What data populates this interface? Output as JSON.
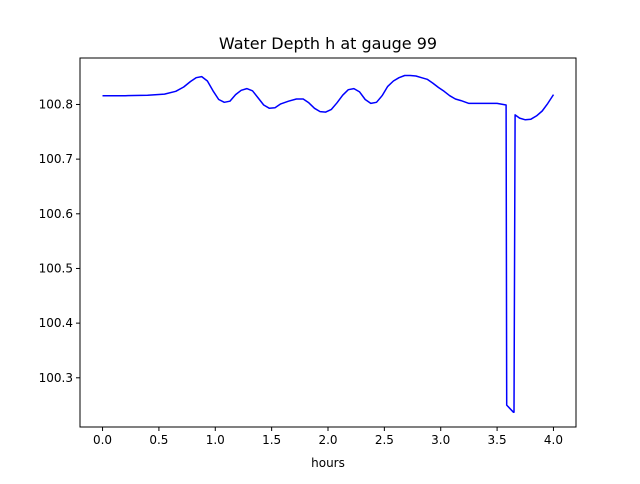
{
  "chart_data": {
    "type": "line",
    "title": "Water Depth h at gauge 99",
    "xlabel": "hours",
    "ylabel": "",
    "xlim": [
      -0.2,
      4.2
    ],
    "ylim": [
      100.21,
      100.885
    ],
    "xticks": [
      0.0,
      0.5,
      1.0,
      1.5,
      2.0,
      2.5,
      3.0,
      3.5,
      4.0
    ],
    "xtick_labels": [
      "0.0",
      "0.5",
      "1.0",
      "1.5",
      "2.0",
      "2.5",
      "3.0",
      "3.5",
      "4.0"
    ],
    "yticks": [
      100.3,
      100.4,
      100.5,
      100.6,
      100.7,
      100.8
    ],
    "ytick_labels": [
      "100.3",
      "100.4",
      "100.5",
      "100.6",
      "100.7",
      "100.8"
    ],
    "grid": false,
    "legend": "none",
    "series": [
      {
        "color": "#0000ff",
        "x": [
          0.0,
          0.2,
          0.4,
          0.55,
          0.65,
          0.72,
          0.78,
          0.83,
          0.88,
          0.93,
          0.98,
          1.03,
          1.08,
          1.13,
          1.18,
          1.23,
          1.28,
          1.33,
          1.38,
          1.43,
          1.48,
          1.53,
          1.58,
          1.65,
          1.72,
          1.78,
          1.83,
          1.88,
          1.93,
          1.98,
          2.03,
          2.08,
          2.13,
          2.18,
          2.23,
          2.28,
          2.33,
          2.38,
          2.43,
          2.48,
          2.53,
          2.58,
          2.63,
          2.68,
          2.73,
          2.78,
          2.83,
          2.88,
          2.93,
          2.98,
          3.03,
          3.08,
          3.13,
          3.18,
          3.25,
          3.35,
          3.45,
          3.5,
          3.58,
          3.585,
          3.645,
          3.65,
          3.66,
          3.7,
          3.75,
          3.8,
          3.85,
          3.9,
          3.95,
          4.0
        ],
        "y": [
          100.816,
          100.816,
          100.817,
          100.819,
          100.824,
          100.832,
          100.842,
          100.849,
          100.851,
          100.843,
          100.825,
          100.809,
          100.804,
          100.806,
          100.818,
          100.826,
          100.829,
          100.825,
          100.812,
          100.799,
          100.793,
          100.794,
          100.801,
          100.806,
          100.81,
          100.81,
          100.803,
          100.793,
          100.787,
          100.786,
          100.791,
          100.803,
          100.817,
          100.827,
          100.829,
          100.823,
          100.809,
          100.802,
          100.804,
          100.816,
          100.833,
          100.843,
          100.849,
          100.853,
          100.853,
          100.852,
          100.849,
          100.846,
          100.839,
          100.831,
          100.824,
          100.816,
          100.81,
          100.807,
          100.802,
          100.802,
          100.802,
          100.802,
          100.799,
          100.25,
          100.237,
          100.237,
          100.781,
          100.775,
          100.772,
          100.773,
          100.779,
          100.788,
          100.802,
          100.818
        ]
      }
    ]
  }
}
